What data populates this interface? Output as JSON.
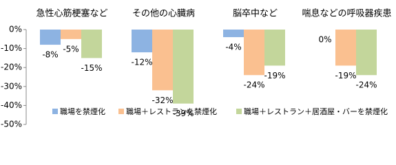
{
  "chart_data": {
    "type": "bar",
    "categories": [
      "急性心筋梗塞など",
      "その他の心臓病",
      "脳卒中など",
      "喘息などの呼吸器疾患"
    ],
    "series": [
      {
        "name": "職場を禁煙化",
        "color": "#8db3e2",
        "values": [
          -8,
          -12,
          -4,
          0
        ],
        "value_labels": [
          "-8%",
          "-12%",
          "-4%",
          "0%"
        ]
      },
      {
        "name": "職場＋レストランを禁煙化",
        "color": "#fac090",
        "values": [
          -5,
          -32,
          -24,
          -19
        ],
        "value_labels": [
          "-5%",
          "-32%",
          "-24%",
          "-19%"
        ]
      },
      {
        "name": "職場＋レストラン＋居酒屋・バーを禁煙化",
        "color": "#c3d69b",
        "values": [
          -15,
          -39,
          -19,
          -24
        ],
        "value_labels": [
          "-15%",
          "-39%",
          "-19%",
          "-24%"
        ]
      }
    ],
    "ylim": [
      -50,
      0
    ],
    "yticks": [
      {
        "value": 0,
        "label": "0%"
      },
      {
        "value": -10,
        "label": "-10%"
      },
      {
        "value": -20,
        "label": "-20%"
      },
      {
        "value": -30,
        "label": "-30%"
      },
      {
        "value": -40,
        "label": "-40%"
      },
      {
        "value": -50,
        "label": "-50%"
      }
    ],
    "legend": "bottom"
  }
}
